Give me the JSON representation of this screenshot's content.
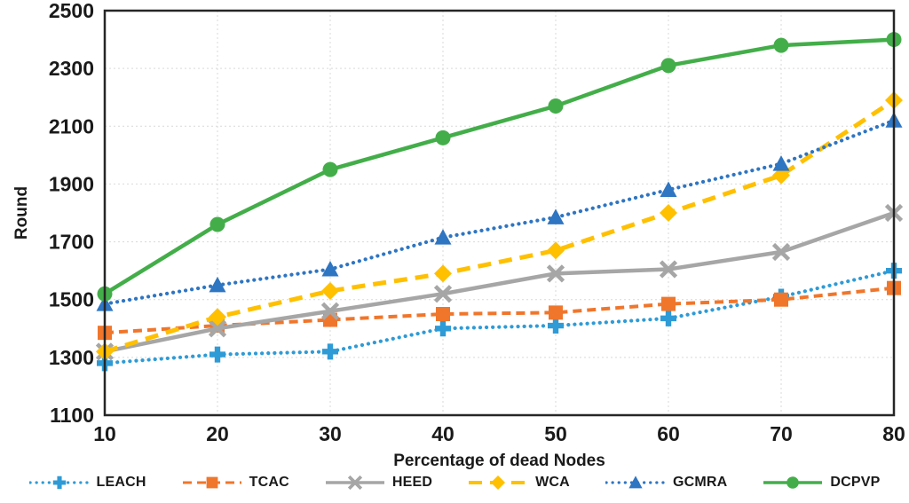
{
  "chart_data": {
    "type": "line",
    "title": "",
    "xlabel": "Percentage of dead Nodes",
    "ylabel": "Round",
    "x": [
      10,
      20,
      30,
      40,
      50,
      60,
      70,
      80
    ],
    "xticks": [
      "10",
      "20",
      "30",
      "40",
      "50",
      "60",
      "70",
      "80"
    ],
    "yticks": [
      "2500",
      "2300",
      "2100",
      "1900",
      "1700",
      "1500",
      "1300",
      "1100"
    ],
    "ylim": [
      1100,
      2500
    ],
    "ytick_step": 200,
    "grid": true,
    "legend_position": "bottom",
    "colors": {
      "grid": "#d9d9d9",
      "border": "#262626",
      "text": "#1a1a1a"
    },
    "series": [
      {
        "name": "LEACH",
        "color": "#2E9BD6",
        "line": "dotted",
        "marker": "plus",
        "values": [
          1280,
          1310,
          1320,
          1400,
          1410,
          1435,
          1510,
          1600
        ]
      },
      {
        "name": "TCAC",
        "color": "#F0762B",
        "line": "dashed",
        "marker": "square",
        "values": [
          1385,
          1410,
          1430,
          1450,
          1455,
          1485,
          1500,
          1540
        ]
      },
      {
        "name": "HEED",
        "color": "#A6A6A6",
        "line": "solid",
        "marker": "x",
        "values": [
          1320,
          1400,
          1460,
          1520,
          1590,
          1605,
          1665,
          1800
        ]
      },
      {
        "name": "WCA",
        "color": "#FFC000",
        "line": "long-dash",
        "marker": "diamond",
        "values": [
          1320,
          1440,
          1530,
          1590,
          1670,
          1800,
          1930,
          2190
        ]
      },
      {
        "name": "GCMRA",
        "color": "#2E75C2",
        "line": "dotted",
        "marker": "triangle",
        "values": [
          1485,
          1550,
          1605,
          1715,
          1785,
          1880,
          1970,
          2120
        ]
      },
      {
        "name": "DCPVP",
        "color": "#43AE49",
        "line": "solid",
        "marker": "circle",
        "values": [
          1520,
          1760,
          1950,
          2060,
          2170,
          2310,
          2380,
          2400
        ]
      }
    ]
  }
}
